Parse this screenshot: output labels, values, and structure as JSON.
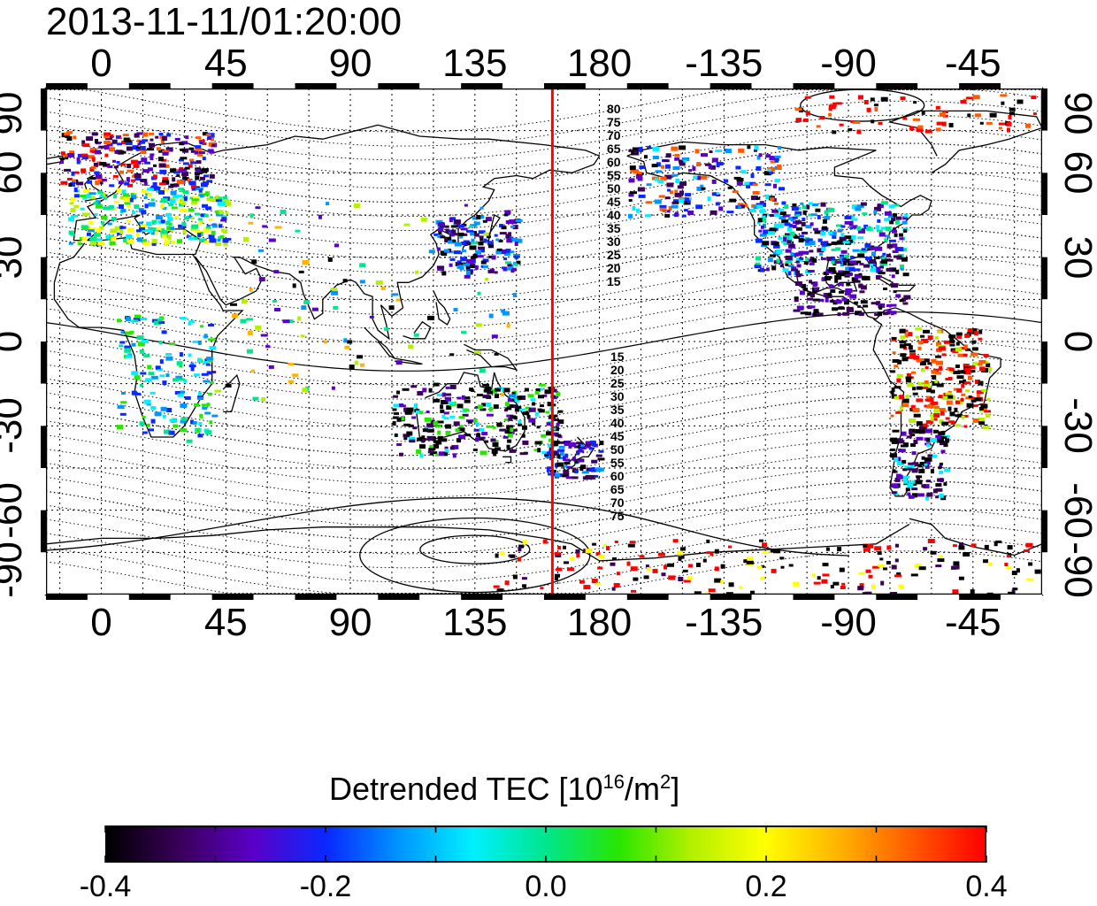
{
  "title": "2013-11-11/01:20:00",
  "map": {
    "lon_ticks": [
      "0",
      "45",
      "90",
      "135",
      "180",
      "-135",
      "-90",
      "-45"
    ],
    "lat_ticks_left": [
      "90",
      "60",
      "30",
      "0",
      "-30",
      "-60",
      "-90"
    ],
    "lat_ticks_right": [
      "90",
      "60",
      "30",
      "0",
      "-30",
      "-60",
      "-90"
    ],
    "lon_range": [
      -20,
      340
    ],
    "lat_range": [
      -90,
      90
    ],
    "grid": "dotted 15 deg",
    "marker_line_lon": 163,
    "marker_line_color": "#ff0000",
    "magnetic_contours_north": [
      "80",
      "75",
      "70",
      "65",
      "60",
      "55",
      "50",
      "45",
      "40",
      "35",
      "30",
      "25",
      "20",
      "15"
    ],
    "magnetic_contours_south": [
      "15",
      "20",
      "25",
      "30",
      "35",
      "40",
      "45",
      "50",
      "55",
      "60",
      "65",
      "70",
      "75"
    ]
  },
  "colorbar": {
    "label": "Detrended TEC  [10",
    "label_sup": "16",
    "label_mid": "/m",
    "label_sup2": "2",
    "label_end": "]",
    "min": -0.4,
    "max": 0.4,
    "ticks": [
      "-0.4",
      "-0.2",
      "0.0",
      "0.2",
      "0.4"
    ],
    "colors": [
      "#000000",
      "#3a005a",
      "#5a00c8",
      "#0a28ff",
      "#0096ff",
      "#00f0ff",
      "#00e68c",
      "#28e600",
      "#b4f000",
      "#ffff00",
      "#ffb400",
      "#ff5a00",
      "#ff0000"
    ]
  }
}
